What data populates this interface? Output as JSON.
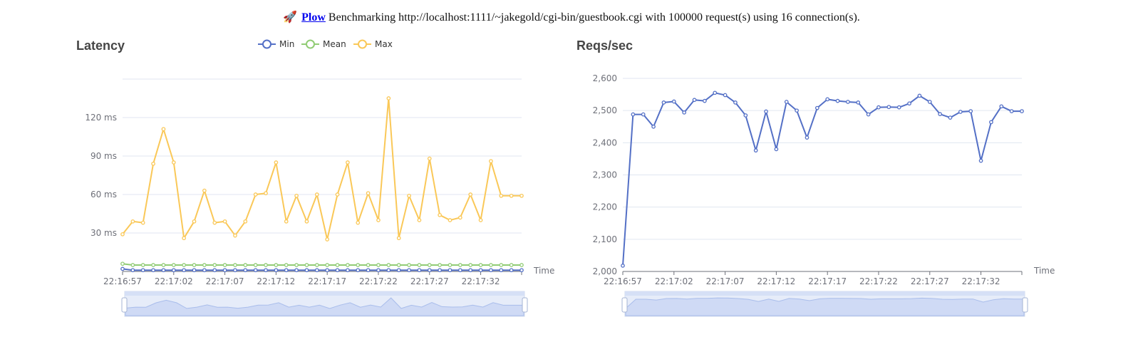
{
  "header": {
    "icon": "rocket-icon",
    "app_name": "Plow",
    "text": "Benchmarking http://localhost:1111/~jakegold/cgi-bin/guestbook.cgi with 100000 request(s) using 16 connection(s)."
  },
  "colors": {
    "min": "#5470c6",
    "mean": "#91cc75",
    "max": "#fac858",
    "reqs": "#5470c6"
  },
  "chart_data": [
    {
      "type": "line",
      "title": "Latency",
      "xlabel": "Time",
      "ylabel": "",
      "unit": "ms",
      "ylim": [
        0,
        150
      ],
      "yticks": [
        30,
        60,
        90,
        120
      ],
      "ytick_labels": [
        "30 ms",
        "60 ms",
        "90 ms",
        "120 ms"
      ],
      "legend": [
        "Min",
        "Mean",
        "Max"
      ],
      "legend_position": "top-center",
      "grid": true,
      "x_tick_labels": [
        "22:16:57",
        "22:17:02",
        "22:17:07",
        "22:17:12",
        "22:17:17",
        "22:17:22",
        "22:17:27",
        "22:17:32"
      ],
      "x": [
        "22:16:57",
        "22:16:58",
        "22:16:59",
        "22:17:00",
        "22:17:01",
        "22:17:02",
        "22:17:03",
        "22:17:04",
        "22:17:05",
        "22:17:06",
        "22:17:07",
        "22:17:08",
        "22:17:09",
        "22:17:10",
        "22:17:11",
        "22:17:12",
        "22:17:13",
        "22:17:14",
        "22:17:15",
        "22:17:16",
        "22:17:17",
        "22:17:18",
        "22:17:19",
        "22:17:20",
        "22:17:21",
        "22:17:22",
        "22:17:23",
        "22:17:24",
        "22:17:25",
        "22:17:26",
        "22:17:27",
        "22:17:28",
        "22:17:29",
        "22:17:30",
        "22:17:31",
        "22:17:32",
        "22:17:33",
        "22:17:34",
        "22:17:35",
        "22:17:36"
      ],
      "series": [
        {
          "name": "Min",
          "values": [
            2,
            1,
            1,
            1,
            1,
            1,
            1,
            1,
            1,
            1,
            1,
            1,
            1,
            1,
            1,
            1,
            1,
            1,
            1,
            1,
            1,
            1,
            1,
            1,
            1,
            1,
            1,
            1,
            1,
            1,
            1,
            1,
            1,
            1,
            1,
            1,
            1,
            1,
            1,
            1
          ]
        },
        {
          "name": "Mean",
          "values": [
            6,
            5,
            5,
            5,
            5,
            5,
            5,
            5,
            5,
            5,
            5,
            5,
            5,
            5,
            5,
            5,
            5,
            5,
            5,
            5,
            5,
            5,
            5,
            5,
            5,
            5,
            5,
            5,
            5,
            5,
            5,
            5,
            5,
            5,
            5,
            5,
            5,
            5,
            5,
            5
          ]
        },
        {
          "name": "Max",
          "values": [
            29,
            39,
            38,
            84,
            111,
            85,
            26,
            39,
            63,
            38,
            39,
            28,
            39,
            60,
            61,
            85,
            39,
            59,
            39,
            60,
            25,
            60,
            85,
            38,
            61,
            40,
            135,
            26,
            59,
            40,
            88,
            44,
            40,
            42,
            60,
            40,
            86,
            59,
            59,
            59
          ]
        }
      ]
    },
    {
      "type": "line",
      "title": "Reqs/sec",
      "xlabel": "Time",
      "ylabel": "",
      "ylim": [
        2000,
        2600
      ],
      "yticks": [
        2000,
        2100,
        2200,
        2300,
        2400,
        2500,
        2600
      ],
      "ytick_labels": [
        "2,000",
        "2,100",
        "2,200",
        "2,300",
        "2,400",
        "2,500",
        "2,600"
      ],
      "grid": true,
      "x_tick_labels": [
        "22:16:57",
        "22:17:02",
        "22:17:07",
        "22:17:12",
        "22:17:17",
        "22:17:22",
        "22:17:27",
        "22:17:32"
      ],
      "x": [
        "22:16:57",
        "22:16:58",
        "22:16:59",
        "22:17:00",
        "22:17:01",
        "22:17:02",
        "22:17:03",
        "22:17:04",
        "22:17:05",
        "22:17:06",
        "22:17:07",
        "22:17:08",
        "22:17:09",
        "22:17:10",
        "22:17:11",
        "22:17:12",
        "22:17:13",
        "22:17:14",
        "22:17:15",
        "22:17:16",
        "22:17:17",
        "22:17:18",
        "22:17:19",
        "22:17:20",
        "22:17:21",
        "22:17:22",
        "22:17:23",
        "22:17:24",
        "22:17:25",
        "22:17:26",
        "22:17:27",
        "22:17:28",
        "22:17:29",
        "22:17:30",
        "22:17:31",
        "22:17:32",
        "22:17:33",
        "22:17:34",
        "22:17:35",
        "22:17:36"
      ],
      "series": [
        {
          "name": "",
          "values": [
            2018,
            2488,
            2488,
            2450,
            2525,
            2528,
            2494,
            2533,
            2530,
            2555,
            2548,
            2525,
            2485,
            2376,
            2497,
            2380,
            2527,
            2500,
            2416,
            2508,
            2535,
            2530,
            2527,
            2525,
            2488,
            2510,
            2511,
            2510,
            2522,
            2546,
            2527,
            2489,
            2478,
            2496,
            2498,
            2344,
            2464,
            2513,
            2498,
            2498
          ]
        }
      ]
    }
  ]
}
